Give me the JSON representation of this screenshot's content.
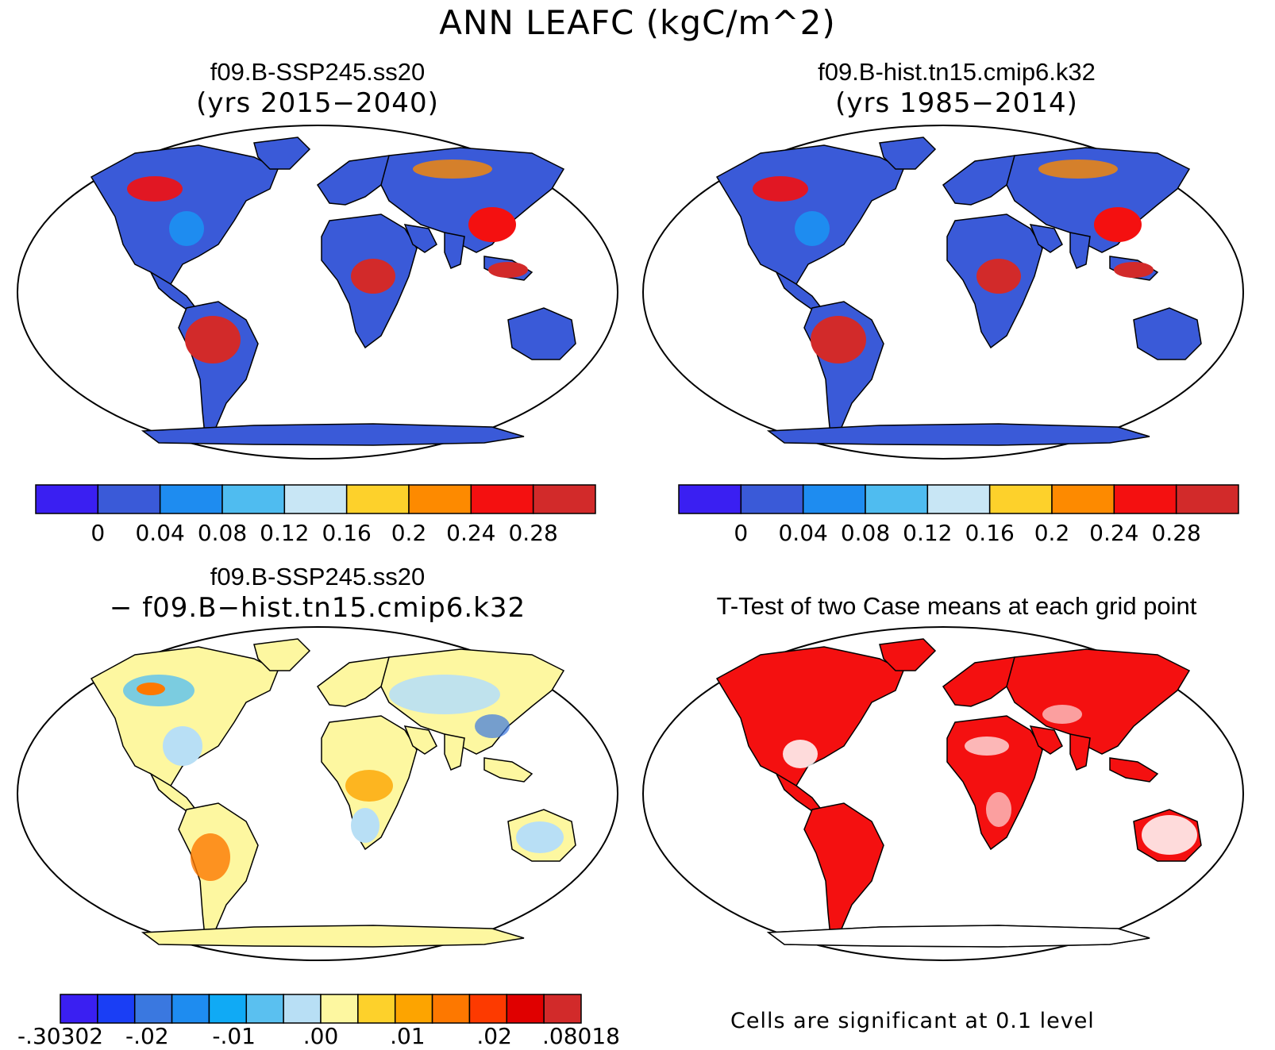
{
  "figure": {
    "title": "ANN LEAFC (kgC/m^2)"
  },
  "panels": [
    {
      "id": "case1",
      "title_line1": "f09.B-SSP245.ss20",
      "title_line2": "(yrs 2015−2040)"
    },
    {
      "id": "case2",
      "title_line1": "f09.B-hist.tn15.cmip6.k32",
      "title_line2": "(yrs 1985−2014)"
    },
    {
      "id": "diff",
      "title_line1": "f09.B-SSP245.ss20",
      "title_line2": "− f09.B−hist.tn15.cmip6.k32"
    },
    {
      "id": "ttest",
      "title_line1": "T-Test of two Case means at each grid point"
    }
  ],
  "colorbars": {
    "field": {
      "colors": [
        "#3a1ff2",
        "#3a5ad8",
        "#1e8cf0",
        "#4fbcf0",
        "#c8e6f5",
        "#fdd12b",
        "#fd8a00",
        "#f41010",
        "#d22a2a"
      ],
      "labels": [
        "0",
        "0.04",
        "0.08",
        "0.12",
        "0.16",
        "0.2",
        "0.24",
        "0.28"
      ]
    },
    "diff": {
      "colors": [
        "#3a1ff2",
        "#1a3ef5",
        "#3a78e0",
        "#1e8cf0",
        "#10aaf5",
        "#5ac0f0",
        "#b8dff5",
        "#fdf7a0",
        "#fdd12b",
        "#fda400",
        "#fd7800",
        "#fd3a00",
        "#e00000",
        "#d22a2a"
      ],
      "labels": [
        "-.30302",
        "-.02",
        "-.01",
        ".00",
        ".01",
        ".02",
        ".08018"
      ]
    }
  },
  "ttest_note": "Cells are significant at 0.1 level",
  "legend_colors": {
    "land_case": "#3a5ad8",
    "land_diff": "#fdf7a0",
    "significant": "#f41010",
    "outline": "#000000"
  }
}
